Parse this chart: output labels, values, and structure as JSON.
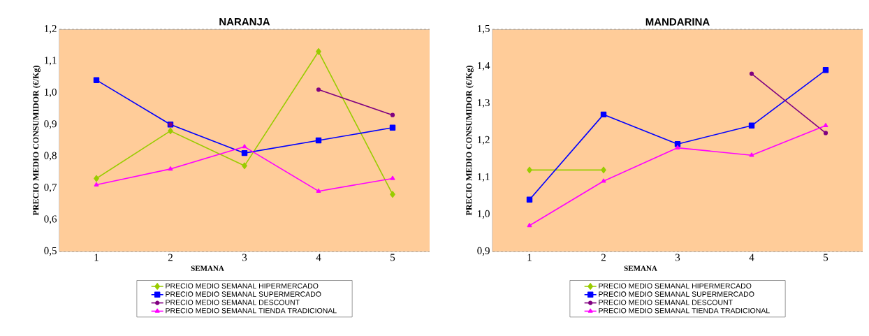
{
  "chart_data": [
    {
      "type": "line",
      "title": "NARANJA",
      "xlabel": "SEMANA",
      "ylabel": "PRECIO MEDIO CONSUMIDOR  (€/Kg)",
      "categories": [
        "1",
        "2",
        "3",
        "4",
        "5"
      ],
      "ylim": [
        0.5,
        1.2
      ],
      "yticks": [
        {
          "value": 0.5,
          "label": "0,5"
        },
        {
          "value": 0.6,
          "label": "0,6"
        },
        {
          "value": 0.7,
          "label": "0,7"
        },
        {
          "value": 0.8,
          "label": "0,8"
        },
        {
          "value": 0.9,
          "label": "0,9"
        },
        {
          "value": 1.0,
          "label": "1,0"
        },
        {
          "value": 1.1,
          "label": "1,1"
        },
        {
          "value": 1.2,
          "label": "1,2"
        }
      ],
      "grid": "y",
      "legend": "bottom",
      "series": [
        {
          "name": "PRECIO MEDIO SEMANAL HIPERMERCADO",
          "color": "#99cc00",
          "marker": "diamond",
          "values": [
            0.73,
            0.88,
            0.77,
            1.13,
            0.68
          ]
        },
        {
          "name": "PRECIO MEDIO SEMANAL SUPERMERCADO",
          "color": "#0000ff",
          "marker": "square",
          "values": [
            1.04,
            0.9,
            0.81,
            0.85,
            0.89
          ]
        },
        {
          "name": "PRECIO MEDIO SEMANAL DESCOUNT",
          "color": "#800080",
          "marker": "circle",
          "values": [
            null,
            0.9,
            null,
            1.01,
            0.93
          ]
        },
        {
          "name": "PRECIO MEDIO SEMANAL TIENDA TRADICIONAL",
          "color": "#ff00ff",
          "marker": "triangle",
          "values": [
            0.71,
            0.76,
            0.83,
            0.69,
            0.73
          ]
        }
      ]
    },
    {
      "type": "line",
      "title": "MANDARINA",
      "xlabel": "SEMANA",
      "ylabel": "PRECIO MEDIO CONSUMIDOR  (€/Kg)",
      "categories": [
        "1",
        "2",
        "3",
        "4",
        "5"
      ],
      "ylim": [
        0.9,
        1.5
      ],
      "yticks": [
        {
          "value": 0.9,
          "label": "0,9"
        },
        {
          "value": 1.0,
          "label": "1,0"
        },
        {
          "value": 1.1,
          "label": "1,1"
        },
        {
          "value": 1.2,
          "label": "1,2"
        },
        {
          "value": 1.3,
          "label": "1,3"
        },
        {
          "value": 1.4,
          "label": "1,4"
        },
        {
          "value": 1.5,
          "label": "1,5"
        }
      ],
      "grid": "y",
      "legend": "bottom",
      "series": [
        {
          "name": "PRECIO MEDIO SEMANAL HIPERMERCADO",
          "color": "#99cc00",
          "marker": "diamond",
          "values": [
            1.12,
            1.12,
            null,
            null,
            null
          ]
        },
        {
          "name": "PRECIO MEDIO SEMANAL SUPERMERCADO",
          "color": "#0000ff",
          "marker": "square",
          "values": [
            1.04,
            1.27,
            1.19,
            1.24,
            1.39
          ]
        },
        {
          "name": "PRECIO MEDIO SEMANAL DESCOUNT",
          "color": "#800080",
          "marker": "circle",
          "values": [
            null,
            null,
            null,
            1.38,
            1.22
          ]
        },
        {
          "name": "PRECIO MEDIO SEMANAL TIENDA TRADICIONAL",
          "color": "#ff00ff",
          "marker": "triangle",
          "values": [
            0.97,
            1.09,
            1.18,
            1.16,
            1.24
          ]
        }
      ]
    }
  ]
}
